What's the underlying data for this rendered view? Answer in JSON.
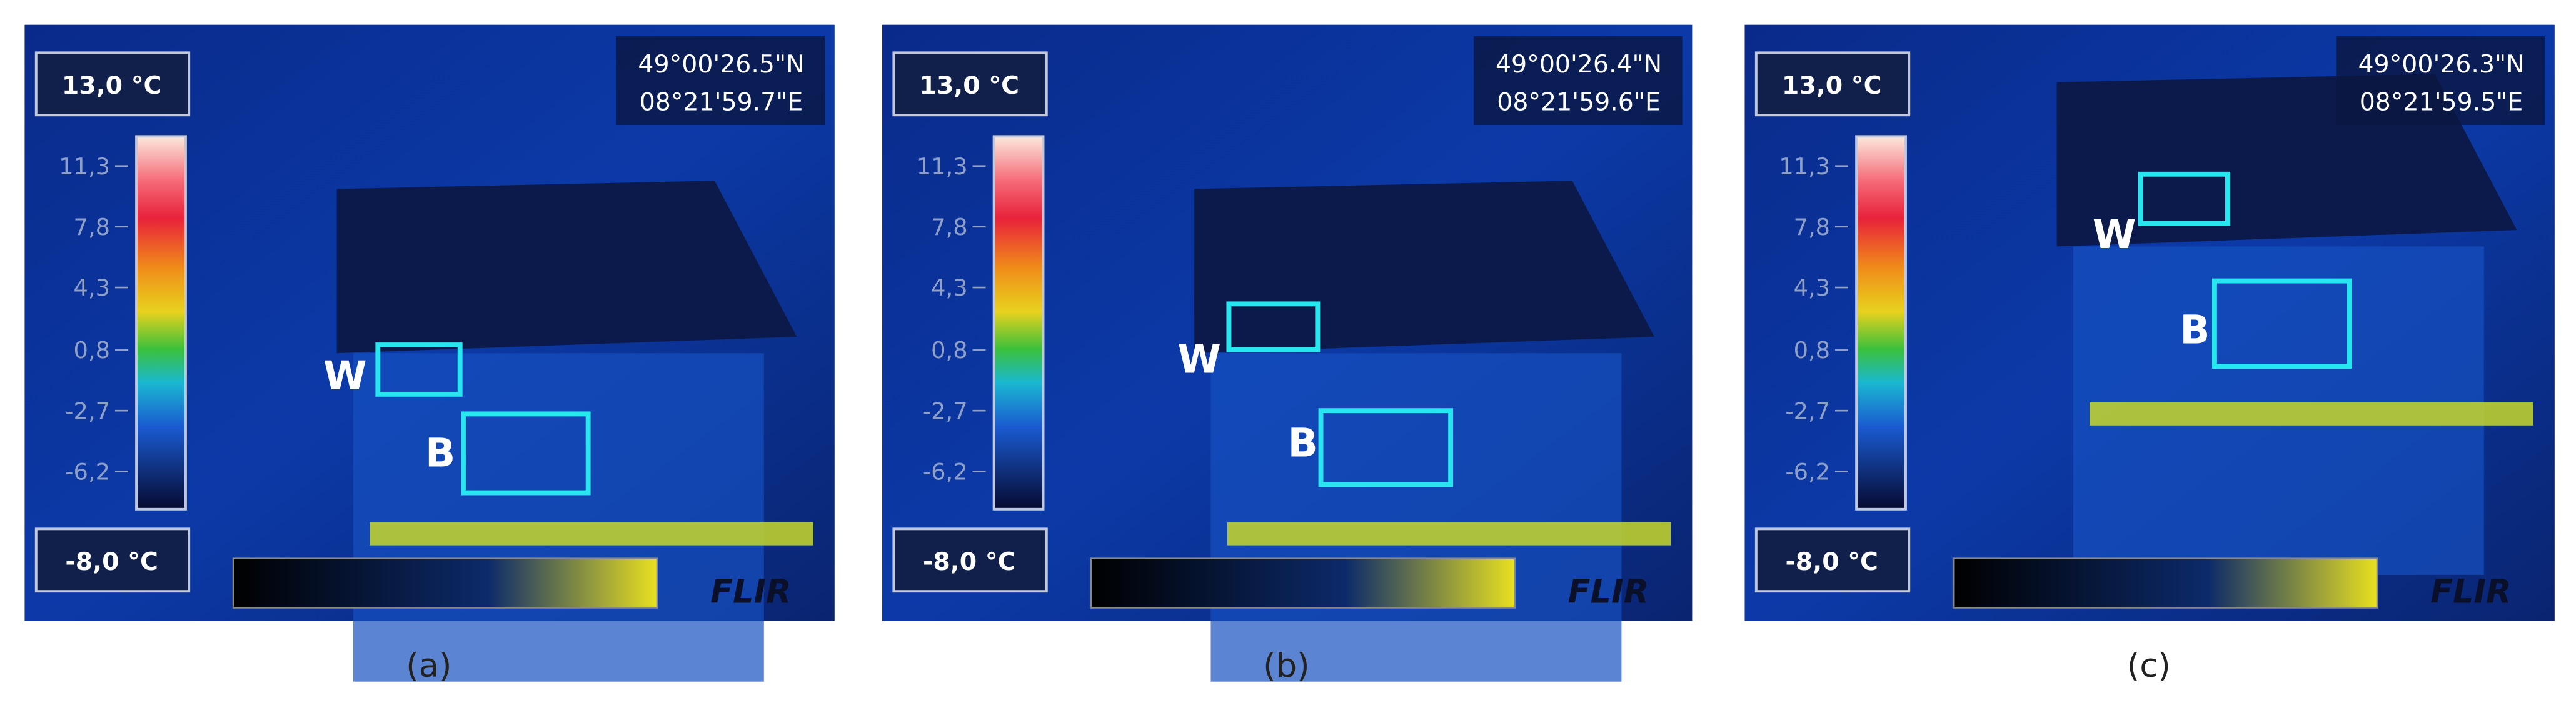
{
  "panels": [
    {
      "max_label": "13,0 °C",
      "min_label": "-8,0 °C",
      "scale_ticks": [
        "11,3",
        "7,8",
        "4,3",
        "0,8",
        "-2,7",
        "-6,2"
      ],
      "latitude": "49°00'26.5\"N",
      "longitude": "08°21'59.7\"E",
      "window_label": "W",
      "balcony_label": "B",
      "logo": "FLIR",
      "caption": "(a)"
    },
    {
      "max_label": "13,0 °C",
      "min_label": "-8,0 °C",
      "scale_ticks": [
        "11,3",
        "7,8",
        "4,3",
        "0,8",
        "-2,7",
        "-6,2"
      ],
      "latitude": "49°00'26.4\"N",
      "longitude": "08°21'59.6\"E",
      "window_label": "W",
      "balcony_label": "B",
      "logo": "FLIR",
      "caption": "(b)"
    },
    {
      "max_label": "13,0 °C",
      "min_label": "-8,0 °C",
      "scale_ticks": [
        "11,3",
        "7,8",
        "4,3",
        "0,8",
        "-2,7",
        "-6,2"
      ],
      "latitude": "49°00'26.3\"N",
      "longitude": "08°21'59.5\"E",
      "window_label": "W",
      "balcony_label": "B",
      "logo": "FLIR",
      "caption": "(c)"
    }
  ]
}
